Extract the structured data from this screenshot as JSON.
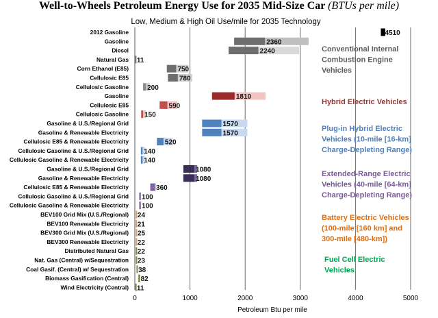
{
  "chart_data": {
    "type": "bar",
    "title": "Well-to-Wheels Petroleum Energy Use for 2035 Mid-Size Car",
    "title_unit": "(BTUs per mile)",
    "subtitle": "Low, Medium & High Oil Use/mile for 2035 Technology",
    "xlabel": "Petroleum Btu per mile",
    "xlim": [
      0,
      5000
    ],
    "xticks": [
      0,
      1000,
      2000,
      3000,
      4000,
      5000
    ],
    "grid": "vertical",
    "legend": "right",
    "groups": [
      {
        "name": "Conventional Internal Combustion Engine Vehicles",
        "lines": [
          "Conventional Internal",
          "Combustion Engine",
          "Vehicles"
        ],
        "color": "#5f5f5f"
      },
      {
        "name": "Hybrid Electric Vehicles",
        "lines": [
          "Hybrid Electric Vehicles"
        ],
        "color": "#943634"
      },
      {
        "name": "Plug-in Hybrid Electric Vehicles (10-mile [16-km] Charge-Depleting Range)",
        "lines": [
          "Plug-in Hybrid Electric",
          "Vehicles (10-mile [16-km]",
          "Charge-Depleting Range)"
        ],
        "color": "#4f81bd"
      },
      {
        "name": "Extended-Range Electric Vehicles (40-mile [64-km] Charge-Depleting Range)",
        "lines": [
          "Extended-Range Electric",
          "Vehicles (40-mile [64-km]",
          "Charge-Depleting Range)"
        ],
        "color": "#7b5a99"
      },
      {
        "name": "Battery Electric Vehicles (100-mile [160 km] and 300-mile [480-km])",
        "lines": [
          "Battery Electric Vehicles",
          "(100-mile [160 km] and",
          "300-mile [480-km])"
        ],
        "color": "#e46c0a"
      },
      {
        "name": "Fuel Cell Electric Vehicles",
        "lines": [
          "Fuel Cell Electric",
          "Vehicles"
        ],
        "color": "#00a651"
      }
    ],
    "rows": [
      {
        "label": "2012 Gasoline",
        "group": 0,
        "low": 4460,
        "mid": 4510,
        "high": 4540,
        "value_label": "4510",
        "dark": "#000000",
        "light": "#000000"
      },
      {
        "label": "Gasoline",
        "group": 0,
        "low": 1800,
        "mid": 2360,
        "high": 3150,
        "value_label": "2360",
        "dark": "#6e6e6e",
        "light": "#bfbfbf"
      },
      {
        "label": "Diesel",
        "group": 0,
        "low": 1700,
        "mid": 2240,
        "high": 2980,
        "value_label": "2240",
        "dark": "#6e6e6e",
        "light": "#d9d9d9"
      },
      {
        "label": "Natural Gas",
        "group": 0,
        "low": 5,
        "mid": 11,
        "high": 15,
        "value_label": "11",
        "dark": "#808080",
        "light": "#bfbfbf"
      },
      {
        "label": "Corn Ethanol (E85)",
        "group": 0,
        "low": 580,
        "mid": 750,
        "high": 970,
        "value_label": "750",
        "dark": "#6e6e6e",
        "light": "#d0d0d0"
      },
      {
        "label": "Cellulosic E85",
        "group": 0,
        "low": 600,
        "mid": 780,
        "high": 1040,
        "value_label": "780",
        "dark": "#6e6e6e",
        "light": "#d0d0d0"
      },
      {
        "label": "Cellulosic Gasoline",
        "group": 0,
        "low": 150,
        "mid": 200,
        "high": 270,
        "value_label": "200",
        "dark": "#8c8c8c",
        "light": "#c8c8c8"
      },
      {
        "label": "Gasoline",
        "group": 1,
        "low": 1400,
        "mid": 1810,
        "high": 2370,
        "value_label": "1810",
        "dark": "#9b2b2b",
        "light": "#f2c4c4"
      },
      {
        "label": "Cellulosic E85",
        "group": 1,
        "low": 450,
        "mid": 590,
        "high": 770,
        "value_label": "590",
        "dark": "#c0504d",
        "light": "#f2c4c4"
      },
      {
        "label": "Cellulosic Gasoline",
        "group": 1,
        "low": 115,
        "mid": 150,
        "high": 200,
        "value_label": "150",
        "dark": "#c0504d",
        "light": "#f2c4c4"
      },
      {
        "label": "Gasoline & U.S./Regional Grid",
        "group": 2,
        "low": 1220,
        "mid": 1570,
        "high": 2040,
        "value_label": "1570",
        "dark": "#4f81bd",
        "light": "#c6d9f1"
      },
      {
        "label": "Gasoline & Renewable Electricity",
        "group": 2,
        "low": 1220,
        "mid": 1570,
        "high": 2040,
        "value_label": "1570",
        "dark": "#4f81bd",
        "light": "#c6d9f1"
      },
      {
        "label": "Cellulosic E85 & Renewable Electricity",
        "group": 2,
        "low": 400,
        "mid": 520,
        "high": 680,
        "value_label": "520",
        "dark": "#4f81bd",
        "light": "#c6d9f1"
      },
      {
        "label": "Cellulosic Gasoline & U.S./Regional Grid",
        "group": 2,
        "low": 110,
        "mid": 140,
        "high": 185,
        "value_label": "140",
        "dark": "#4f81bd",
        "light": "#c6d9f1"
      },
      {
        "label": "Cellulosic Gasoline & Renewable Electricity",
        "group": 2,
        "low": 110,
        "mid": 140,
        "high": 185,
        "value_label": "140",
        "dark": "#4f81bd",
        "light": "#c6d9f1"
      },
      {
        "label": "Gasoline & U.S./Regional Grid",
        "group": 3,
        "low": 880,
        "mid": 1080,
        "high": 1130,
        "value_label": "1080",
        "dark": "#3b2f58",
        "light": "#7b6a9f"
      },
      {
        "label": "Gasoline & Renewable Electricity",
        "group": 3,
        "low": 880,
        "mid": 1080,
        "high": 1130,
        "value_label": "1080",
        "dark": "#3b2f58",
        "light": "#7b6a9f"
      },
      {
        "label": "Cellulosic E85 & Renewable Electricity",
        "group": 3,
        "low": 280,
        "mid": 360,
        "high": 380,
        "value_label": "360",
        "dark": "#8064a2",
        "light": "#b3a2c7"
      },
      {
        "label": "Cellulosic Gasoline & U.S./Regional Grid",
        "group": 3,
        "low": 80,
        "mid": 100,
        "high": 110,
        "value_label": "100",
        "dark": "#8064a2",
        "light": "#b3a2c7"
      },
      {
        "label": "Cellulosic Gasoline & Renewable Electricity",
        "group": 3,
        "low": 80,
        "mid": 100,
        "high": 110,
        "value_label": "100",
        "dark": "#8064a2",
        "light": "#b3a2c7"
      },
      {
        "label": "BEV100 Grid Mix (U.S./Regional)",
        "group": 4,
        "low": 18,
        "mid": 24,
        "high": 30,
        "value_label": "24",
        "dark": "#d9a066",
        "light": "#fbd5b5"
      },
      {
        "label": "BEV100 Renewable Electricity",
        "group": 4,
        "low": 16,
        "mid": 21,
        "high": 27,
        "value_label": "21",
        "dark": "#d9a066",
        "light": "#fbd5b5"
      },
      {
        "label": "BEV300 Grid Mix (U.S./Regional)",
        "group": 4,
        "low": 19,
        "mid": 25,
        "high": 32,
        "value_label": "25",
        "dark": "#d9a066",
        "light": "#fbd5b5"
      },
      {
        "label": "BEV300 Renewable Electricity",
        "group": 4,
        "low": 17,
        "mid": 22,
        "high": 28,
        "value_label": "22",
        "dark": "#d9a066",
        "light": "#fbd5b5"
      },
      {
        "label": "Distributed Natural Gas",
        "group": 5,
        "low": 17,
        "mid": 22,
        "high": 28,
        "value_label": "22",
        "dark": "#8a8a55",
        "light": "#c4d79b"
      },
      {
        "label": "Nat. Gas (Central) w/Sequestration",
        "group": 5,
        "low": 18,
        "mid": 23,
        "high": 29,
        "value_label": "23",
        "dark": "#8a8a55",
        "light": "#c4d79b"
      },
      {
        "label": "Coal Gasif. (Central) w/ Sequestration",
        "group": 5,
        "low": 30,
        "mid": 38,
        "high": 48,
        "value_label": "38",
        "dark": "#8a8a55",
        "light": "#c4d79b"
      },
      {
        "label": "Biomass Gasification (Central)",
        "group": 5,
        "low": 65,
        "mid": 82,
        "high": 100,
        "value_label": "82",
        "dark": "#6b7f3a",
        "light": "#c4d79b"
      },
      {
        "label": "Wind Electricity (Central)",
        "group": 5,
        "low": 8,
        "mid": 11,
        "high": 14,
        "value_label": "11",
        "dark": "#8a8a55",
        "light": "#c4d79b"
      }
    ]
  }
}
